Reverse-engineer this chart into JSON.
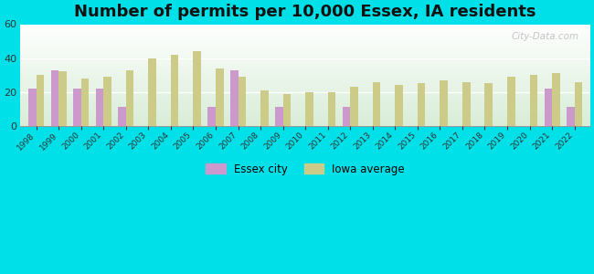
{
  "title": "Number of permits per 10,000 Essex, IA residents",
  "years": [
    1998,
    1999,
    2000,
    2001,
    2002,
    2003,
    2004,
    2005,
    2006,
    2007,
    2008,
    2009,
    2010,
    2011,
    2012,
    2013,
    2014,
    2015,
    2016,
    2017,
    2018,
    2019,
    2020,
    2021,
    2022
  ],
  "essex": [
    22,
    33,
    22,
    22,
    11,
    0,
    0,
    0,
    11,
    33,
    0,
    11,
    0,
    0,
    11,
    0,
    0,
    0,
    0,
    0,
    0,
    0,
    0,
    22,
    11
  ],
  "iowa": [
    30,
    32,
    28,
    29,
    33,
    40,
    42,
    44,
    34,
    29,
    21,
    19,
    20,
    20,
    23,
    26,
    24,
    25,
    27,
    26,
    25,
    29,
    30,
    31,
    26
  ],
  "essex_color": "#cc99cc",
  "iowa_color": "#cccc88",
  "outer_bg": "#00e0e8",
  "plot_bg_top": "#ffffff",
  "plot_bg_bottom": "#d8edd8",
  "ylim": [
    0,
    60
  ],
  "yticks": [
    0,
    20,
    40,
    60
  ],
  "bar_width": 0.35,
  "title_fontsize": 13,
  "legend_essex": "Essex city",
  "legend_iowa": "Iowa average",
  "watermark": "City-Data.com"
}
